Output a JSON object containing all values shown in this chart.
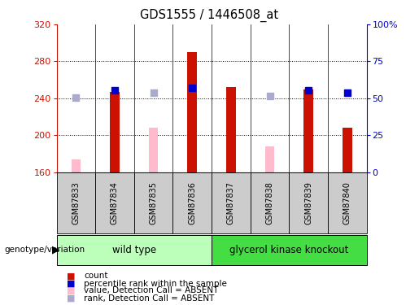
{
  "title": "GDS1555 / 1446508_at",
  "samples": [
    "GSM87833",
    "GSM87834",
    "GSM87835",
    "GSM87836",
    "GSM87837",
    "GSM87838",
    "GSM87839",
    "GSM87840"
  ],
  "groups": [
    {
      "name": "wild type",
      "color": "#bbffbb",
      "indices": [
        0,
        1,
        2,
        3
      ]
    },
    {
      "name": "glycerol kinase knockout",
      "color": "#44dd44",
      "indices": [
        4,
        5,
        6,
        7
      ]
    }
  ],
  "red_bars": [
    null,
    247,
    null,
    290,
    252,
    null,
    250,
    208
  ],
  "pink_bars": [
    174,
    null,
    208,
    null,
    null,
    188,
    null,
    null
  ],
  "blue_squares": [
    null,
    249,
    null,
    251,
    null,
    null,
    249,
    246
  ],
  "lavender_squares": [
    241,
    null,
    246,
    null,
    null,
    243,
    null,
    null
  ],
  "ymin": 160,
  "ymax": 320,
  "yticks": [
    160,
    200,
    240,
    280,
    320
  ],
  "y2min": 0,
  "y2max": 100,
  "y2ticks": [
    0,
    25,
    50,
    75,
    100
  ],
  "y2ticklabels": [
    "0",
    "25",
    "50",
    "75",
    "100%"
  ],
  "red_color": "#cc1100",
  "pink_color": "#ffbbcc",
  "blue_color": "#0000cc",
  "lavender_color": "#aaaacc",
  "sample_box_color": "#cccccc",
  "legend_items": [
    {
      "label": "count",
      "color": "#cc1100"
    },
    {
      "label": "percentile rank within the sample",
      "color": "#0000cc"
    },
    {
      "label": "value, Detection Call = ABSENT",
      "color": "#ffbbcc"
    },
    {
      "label": "rank, Detection Call = ABSENT",
      "color": "#aaaacc"
    }
  ]
}
